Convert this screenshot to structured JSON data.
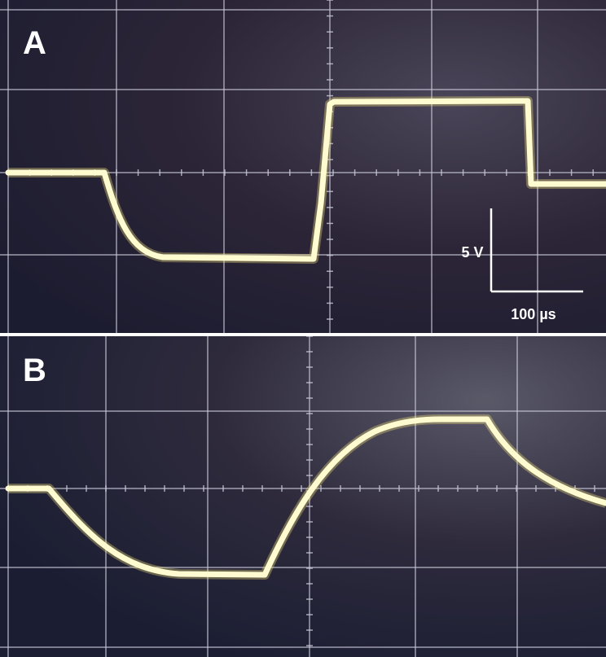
{
  "panels": [
    {
      "label": "A"
    },
    {
      "label": "B"
    }
  ],
  "scale_bar": {
    "vertical": "5 V",
    "horizontal": "100 µs"
  }
}
